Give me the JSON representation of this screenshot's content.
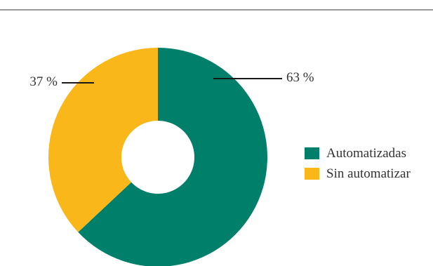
{
  "chart_data": {
    "type": "pie",
    "donut": true,
    "title": "",
    "categories": [
      "Automatizadas",
      "Sin automatizar"
    ],
    "values": [
      63,
      37
    ],
    "data_labels": [
      "63 %",
      "37 %"
    ],
    "colors": [
      "#00806a",
      "#f9b71a"
    ],
    "legend": {
      "position": "right",
      "entries": [
        "Automatizadas",
        "Sin automatizar"
      ]
    }
  }
}
